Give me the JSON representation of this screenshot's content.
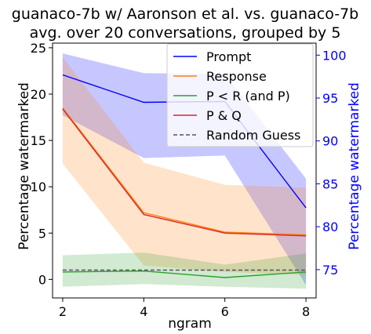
{
  "chart_data": {
    "type": "line",
    "title": "guanaco-7b w/ Aaronson et al. vs. guanaco-7b",
    "subtitle": "avg. over 20 conversations, grouped by 5",
    "xlabel": "ngram",
    "ylabel": "Percentage watermarked",
    "y2label": "Percentage watermarked",
    "x": [
      2,
      4,
      6,
      8
    ],
    "xlim": [
      1.75,
      8.25
    ],
    "ylim": [
      -2.0,
      25.5
    ],
    "y2lim": [
      71.7,
      101.4
    ],
    "xticks": [
      "2",
      "4",
      "6",
      "8"
    ],
    "yticks": [
      "0",
      "5",
      "10",
      "15",
      "20",
      "25"
    ],
    "y2ticks": [
      "75",
      "80",
      "85",
      "90",
      "95",
      "100"
    ],
    "grid": false,
    "legend": "top-right",
    "y2color": "#0000ff",
    "series": [
      {
        "name": "Prompt",
        "axis": "right",
        "color": "#0000ff",
        "values": [
          97.7,
          94.5,
          94.6,
          82.2
        ],
        "band_low": [
          93.0,
          88.0,
          88.3,
          73.2
        ],
        "band_high": [
          100.2,
          97.9,
          97.8,
          85.6
        ]
      },
      {
        "name": "Response",
        "axis": "left",
        "color": "#ff7f0e",
        "values": [
          18.5,
          7.2,
          5.1,
          4.8
        ],
        "band_low": [
          12.5,
          1.5,
          0.8,
          0.5
        ],
        "band_high": [
          24.0,
          12.6,
          10.2,
          9.9
        ]
      },
      {
        "name": "P < R (and P)",
        "axis": "left",
        "color": "#2ca02c",
        "values": [
          0.8,
          0.9,
          0.2,
          0.8
        ],
        "band_low": [
          -0.8,
          -0.5,
          -0.8,
          -1.0
        ],
        "band_high": [
          2.6,
          2.9,
          1.6,
          2.8
        ]
      },
      {
        "name": "P & Q",
        "axis": "left",
        "color": "#d62728",
        "values": [
          18.4,
          7.0,
          5.0,
          4.7
        ]
      },
      {
        "name": "Random Guess",
        "axis": "left",
        "color": "#555555",
        "dashed": true,
        "values": [
          1.0,
          1.0,
          1.0,
          1.0
        ]
      }
    ]
  }
}
